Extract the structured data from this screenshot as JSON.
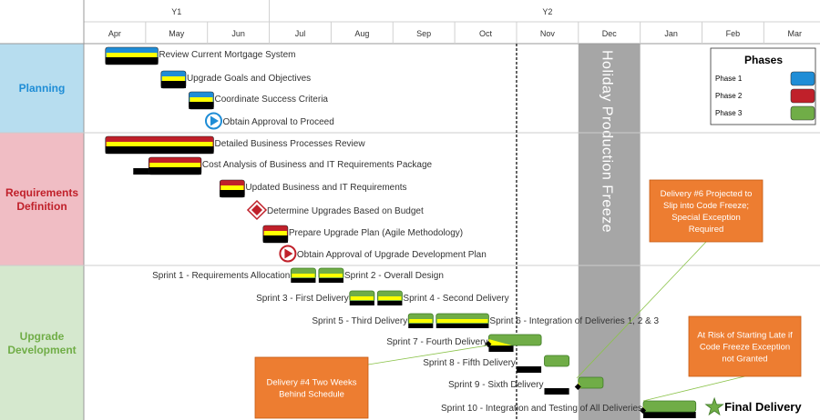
{
  "chart_data": {
    "type": "gantt",
    "months": [
      "Apr",
      "May",
      "Jun",
      "Jul",
      "Aug",
      "Sep",
      "Oct",
      "Nov",
      "Dec",
      "Jan",
      "Feb",
      "Mar"
    ],
    "years": [
      {
        "label": "Y1",
        "start": 0,
        "end": 3
      },
      {
        "label": "Y2",
        "start": 3,
        "end": 12
      }
    ],
    "current_date_marker": 7.0,
    "freeze": {
      "start": 8.0,
      "end": 9.0,
      "label": "Holiday Production Freeze"
    },
    "sections": [
      {
        "name": "Planning",
        "color": "#1F8DD6",
        "bg": "#B7DDEF"
      },
      {
        "name": "Requirements Definition",
        "color": "#C0202A",
        "bg": "#F0BDC4"
      },
      {
        "name": "Upgrade Development",
        "color": "#70AD47",
        "bg": "#D5E8CE"
      }
    ],
    "legend": {
      "title": "Phases",
      "items": [
        {
          "label": "Phase 1",
          "color": "#1F8DD6"
        },
        {
          "label": "Phase 2",
          "color": "#C0202A"
        },
        {
          "label": "Phase 3",
          "color": "#70AD47"
        }
      ]
    },
    "tasks": [
      {
        "label": "Review Current Mortgage System",
        "type": "bar",
        "phase": 1,
        "start": 0.35,
        "end": 1.2,
        "row": 0,
        "label_side": "right"
      },
      {
        "label": "Upgrade Goals and Objectives",
        "type": "bar",
        "phase": 1,
        "start": 1.25,
        "end": 1.65,
        "row": 1,
        "label_side": "right"
      },
      {
        "label": "Coordinate Success Criteria",
        "type": "bar",
        "phase": 1,
        "start": 1.7,
        "end": 2.1,
        "row": 2,
        "label_side": "right"
      },
      {
        "label": "Obtain Approval to Proceed",
        "type": "milestone",
        "phase": 1,
        "at": 2.1,
        "row": 3,
        "label_side": "right"
      },
      {
        "label": "Detailed Business Processes Review",
        "type": "bar",
        "phase": 2,
        "start": 0.35,
        "end": 2.1,
        "row": 4,
        "label_side": "right"
      },
      {
        "label": "Cost Analysis of Business and IT Requirements Package",
        "type": "bar",
        "phase": 2,
        "start": 1.05,
        "end": 1.9,
        "row": 5,
        "label_side": "right",
        "baseline": [
          0.8,
          1.65
        ]
      },
      {
        "label": "Updated Business and IT Requirements",
        "type": "bar",
        "phase": 2,
        "start": 2.2,
        "end": 2.6,
        "row": 6,
        "label_side": "right"
      },
      {
        "label": "Determine Upgrades Based on Budget",
        "type": "diamond",
        "phase": 2,
        "at": 2.8,
        "row": 7,
        "label_side": "right"
      },
      {
        "label": "Prepare Upgrade Plan (Agile Methodology)",
        "type": "bar",
        "phase": 2,
        "start": 2.9,
        "end": 3.3,
        "row": 8,
        "label_side": "right"
      },
      {
        "label": "Obtain Approval of Upgrade Development Plan",
        "type": "milestone",
        "phase": 2,
        "at": 3.3,
        "row": 9,
        "label_side": "right"
      },
      {
        "label": "Sprint 1 - Requirements Allocation",
        "type": "bar",
        "phase": 3,
        "start": 3.35,
        "end": 3.75,
        "row": 10,
        "label_side": "left"
      },
      {
        "label": "Sprint 2 - Overall  Design",
        "type": "bar",
        "phase": 3,
        "start": 3.8,
        "end": 4.2,
        "row": 10,
        "label_side": "right"
      },
      {
        "label": "Sprint 3 - First Delivery",
        "type": "bar",
        "phase": 3,
        "start": 4.3,
        "end": 4.7,
        "row": 11,
        "label_side": "left"
      },
      {
        "label": "Sprint 4 - Second Delivery",
        "type": "bar",
        "phase": 3,
        "start": 4.75,
        "end": 5.15,
        "row": 11,
        "label_side": "right"
      },
      {
        "label": "Sprint 5 - Third Delivery",
        "type": "bar",
        "phase": 3,
        "start": 5.25,
        "end": 5.65,
        "row": 12,
        "label_side": "left"
      },
      {
        "label": "Sprint  6 - Integration of Deliveries 1, 2 & 3",
        "type": "bar",
        "phase": 3,
        "start": 5.7,
        "end": 6.55,
        "row": 12,
        "label_side": "right"
      },
      {
        "label": "Sprint 7 - Fourth Delivery",
        "type": "bar",
        "phase": 3,
        "start": 6.55,
        "end": 7.4,
        "row": 13,
        "label_side": "left",
        "baseline": [
          6.55,
          6.95
        ],
        "progress": 0.44
      },
      {
        "label": "Sprint 8 - Fifth Delivery",
        "type": "bar",
        "phase": 3,
        "start": 7.45,
        "end": 7.85,
        "row": 14,
        "label_side": "left",
        "baseline": [
          7.0,
          7.4
        ]
      },
      {
        "label": "Sprint 9 - Sixth Delivery",
        "type": "bar",
        "phase": 3,
        "start": 8.0,
        "end": 8.4,
        "row": 15,
        "label_side": "left",
        "baseline": [
          7.45,
          7.85
        ],
        "progress": 0.1
      },
      {
        "label": "Sprint 10 - Integration and Testing of All Deliveries",
        "type": "bar",
        "phase": 3,
        "start": 9.05,
        "end": 9.9,
        "row": 16,
        "label_side": "left",
        "baseline": [
          9.05,
          9.9
        ],
        "progress": 0.02
      },
      {
        "label": "Final Delivery",
        "type": "star",
        "phase": 3,
        "at": 10.2,
        "row": 16,
        "label_side": "right"
      }
    ],
    "callouts": [
      {
        "text": "Delivery #6 Projected to Slip into Code Freeze; Special Exception Required",
        "target_task": "Sprint 9 - Sixth Delivery"
      },
      {
        "text": "Delivery #4 Two Weeks Behind Schedule",
        "target_task": "Sprint 7 - Fourth Delivery"
      },
      {
        "text": "At Risk of Starting Late if Code Freeze Exception not Granted",
        "target_task": "Sprint 10 - Integration and Testing of All Deliveries"
      }
    ]
  }
}
